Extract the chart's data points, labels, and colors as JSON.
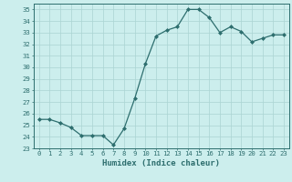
{
  "x": [
    0,
    1,
    2,
    3,
    4,
    5,
    6,
    7,
    8,
    9,
    10,
    11,
    12,
    13,
    14,
    15,
    16,
    17,
    18,
    19,
    20,
    21,
    22,
    23
  ],
  "y": [
    25.5,
    25.5,
    25.2,
    24.8,
    24.1,
    24.1,
    24.1,
    23.3,
    24.7,
    27.3,
    30.3,
    32.7,
    33.2,
    33.5,
    35.0,
    35.0,
    34.3,
    33.0,
    33.5,
    33.1,
    32.2,
    32.5,
    32.8,
    32.8
  ],
  "xlabel": "Humidex (Indice chaleur)",
  "ylabel": "",
  "xlim": [
    -0.5,
    23.5
  ],
  "ylim": [
    23,
    35.5
  ],
  "yticks": [
    23,
    24,
    25,
    26,
    27,
    28,
    29,
    30,
    31,
    32,
    33,
    34,
    35
  ],
  "xticks": [
    0,
    1,
    2,
    3,
    4,
    5,
    6,
    7,
    8,
    9,
    10,
    11,
    12,
    13,
    14,
    15,
    16,
    17,
    18,
    19,
    20,
    21,
    22,
    23
  ],
  "line_color": "#2d6e6e",
  "marker": "D",
  "marker_size": 2.0,
  "bg_color": "#cceeed",
  "grid_color": "#aad4d2",
  "tick_label_fontsize": 5.2,
  "xlabel_fontsize": 6.5
}
